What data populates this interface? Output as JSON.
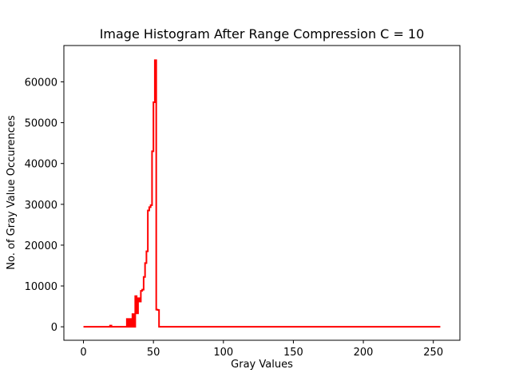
{
  "chart_data": {
    "type": "line",
    "title": "Image Histogram After Range Compression C = 10",
    "xlabel": "Gray Values",
    "ylabel": "No. of Gray Value Occurences",
    "xlim": [
      -14,
      269
    ],
    "ylim": [
      -3300,
      68900
    ],
    "xticks": [
      0,
      50,
      100,
      150,
      200,
      250
    ],
    "yticks": [
      0,
      10000,
      20000,
      30000,
      40000,
      50000,
      60000
    ],
    "grid": false,
    "legend": "none",
    "series": [
      {
        "color": "#ff0000",
        "step": true,
        "x": [
          0,
          18,
          19,
          20,
          21,
          30,
          31,
          32,
          33,
          34,
          35,
          36,
          37,
          38,
          39,
          40,
          41,
          42,
          43,
          44,
          45,
          46,
          47,
          48,
          49,
          50,
          51,
          52,
          53,
          54,
          55,
          56,
          57,
          255
        ],
        "y": [
          0,
          0,
          300,
          0,
          0,
          0,
          1900,
          0,
          1900,
          0,
          3100,
          0,
          7500,
          3300,
          7000,
          6200,
          8800,
          9100,
          12200,
          15600,
          18500,
          28500,
          29300,
          29800,
          43000,
          55000,
          65300,
          4200,
          4100,
          0,
          0,
          0,
          0,
          0
        ]
      }
    ]
  }
}
